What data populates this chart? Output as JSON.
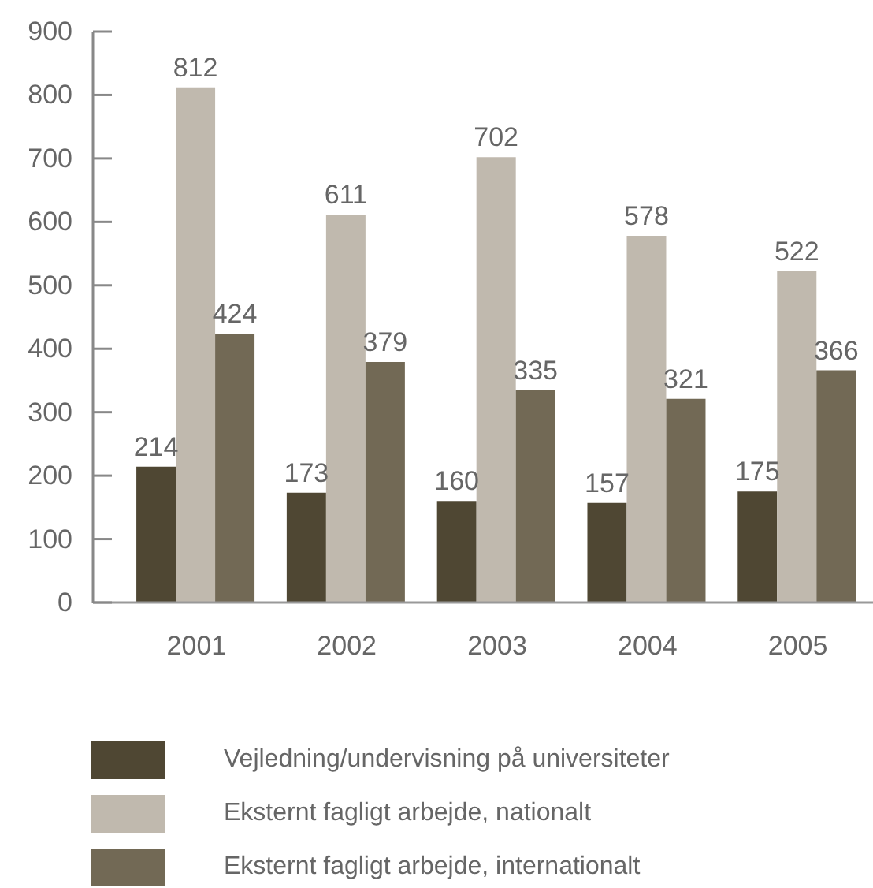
{
  "chart_data": {
    "type": "bar",
    "categories": [
      "2001",
      "2002",
      "2003",
      "2004",
      "2005"
    ],
    "series": [
      {
        "name": "Vejledning/undervisning på universiteter",
        "color": "#4f4733",
        "values": [
          214,
          173,
          160,
          157,
          175
        ]
      },
      {
        "name": "Eksternt fagligt arbejde, nationalt",
        "color": "#c0b9ae",
        "values": [
          812,
          611,
          702,
          578,
          522
        ]
      },
      {
        "name": "Eksternt fagligt arbejde, internationalt",
        "color": "#726955",
        "values": [
          424,
          379,
          335,
          321,
          366
        ]
      }
    ],
    "ylim": [
      0,
      900
    ],
    "yticks": [
      0,
      100,
      200,
      300,
      400,
      500,
      600,
      700,
      800,
      900
    ],
    "data_labels": true,
    "legend": "bottom"
  }
}
